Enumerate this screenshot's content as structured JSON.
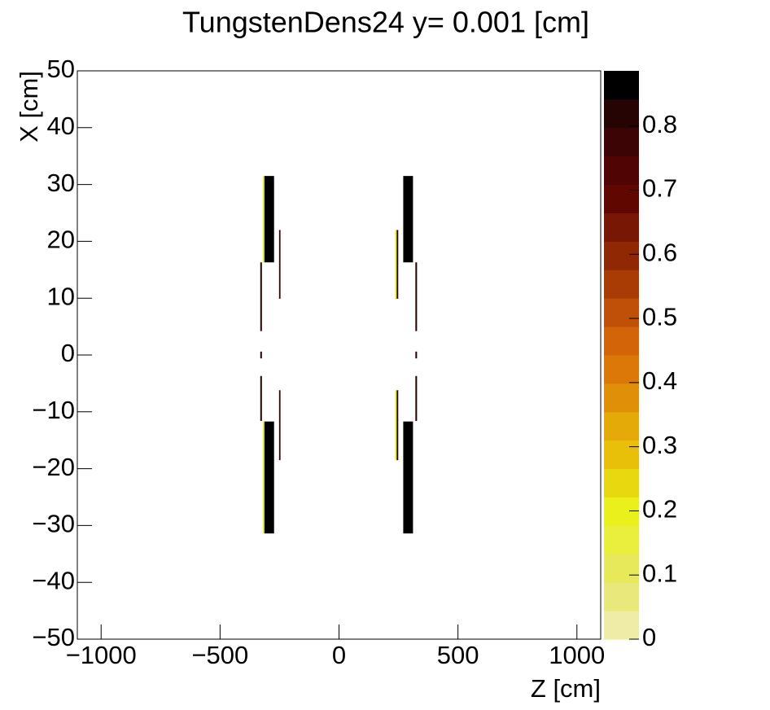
{
  "chart_data": {
    "type": "heatmap",
    "title": "TungstenDens24 y=  0.001 [cm]",
    "xlabel": "Z [cm]",
    "ylabel": "X [cm]",
    "xlim": [
      -1100,
      1100
    ],
    "ylim": [
      -50,
      50
    ],
    "zlim": [
      0,
      0.886
    ],
    "xticks": [
      {
        "value": -1000,
        "label": "−1000"
      },
      {
        "value": -500,
        "label": "−500"
      },
      0,
      500,
      1000
    ],
    "yticks": [
      {
        "value": -50,
        "label": "−50"
      },
      {
        "value": -40,
        "label": "−40"
      },
      {
        "value": -30,
        "label": "−30"
      },
      {
        "value": -20,
        "label": "−20"
      },
      {
        "value": -10,
        "label": "−10"
      },
      0,
      10,
      20,
      30,
      40,
      50
    ],
    "zticks": [
      0,
      0.1,
      0.2,
      0.3,
      0.4,
      0.5,
      0.6,
      0.7,
      0.8
    ],
    "palette": [
      "#efeca8",
      "#e9e87a",
      "#e8e95a",
      "#eaee3c",
      "#eaf01c",
      "#e8d810",
      "#e8c00a",
      "#e4aa08",
      "#e09008",
      "#dc7808",
      "#d46408",
      "#c05008",
      "#a83c04",
      "#902804",
      "#781804",
      "#600800",
      "#500404",
      "#3c0404",
      "#260404",
      "#000000"
    ],
    "cells": [
      {
        "x": [
          -314,
          -273
        ],
        "y": [
          16.3,
          31.5
        ],
        "value": 0.886
      },
      {
        "x": [
          -320,
          -314
        ],
        "y": [
          16.3,
          31.5
        ],
        "value": 0.2
      },
      {
        "x": [
          -314,
          -273
        ],
        "y": [
          -31.4,
          -11.7
        ],
        "value": 0.886
      },
      {
        "x": [
          -320,
          -314
        ],
        "y": [
          -31.4,
          -11.7
        ],
        "value": 0.2
      },
      {
        "x": [
          -331,
          -324
        ],
        "y": [
          4.2,
          16.3
        ],
        "value": 0.8
      },
      {
        "x": [
          -331,
          -324
        ],
        "y": [
          -11.6,
          -3.7
        ],
        "value": 0.8
      },
      {
        "x": [
          -331,
          -324
        ],
        "y": [
          -0.6,
          0.6
        ],
        "value": 0.8
      },
      {
        "x": [
          -252,
          -246
        ],
        "y": [
          9.9,
          22
        ],
        "value": 0.8
      },
      {
        "x": [
          -252,
          -246
        ],
        "y": [
          -18.5,
          -6.2
        ],
        "value": 0.8
      },
      {
        "x": [
          270,
          311
        ],
        "y": [
          16.3,
          31.5
        ],
        "value": 0.886
      },
      {
        "x": [
          270,
          311
        ],
        "y": [
          -31.4,
          -11.7
        ],
        "value": 0.886
      },
      {
        "x": [
          321,
          328
        ],
        "y": [
          4.2,
          16.3
        ],
        "value": 0.8
      },
      {
        "x": [
          321,
          328
        ],
        "y": [
          -11.6,
          -3.7
        ],
        "value": 0.8
      },
      {
        "x": [
          321,
          328
        ],
        "y": [
          -0.6,
          0.6
        ],
        "value": 0.8
      },
      {
        "x": [
          242,
          249
        ],
        "y": [
          9.9,
          22
        ],
        "value": 0.8
      },
      {
        "x": [
          236,
          242
        ],
        "y": [
          9.9,
          22
        ],
        "value": 0.2
      },
      {
        "x": [
          242,
          249
        ],
        "y": [
          -18.5,
          -6.2
        ],
        "value": 0.8
      },
      {
        "x": [
          236,
          242
        ],
        "y": [
          -18.5,
          -6.2
        ],
        "value": 0.2
      }
    ]
  }
}
